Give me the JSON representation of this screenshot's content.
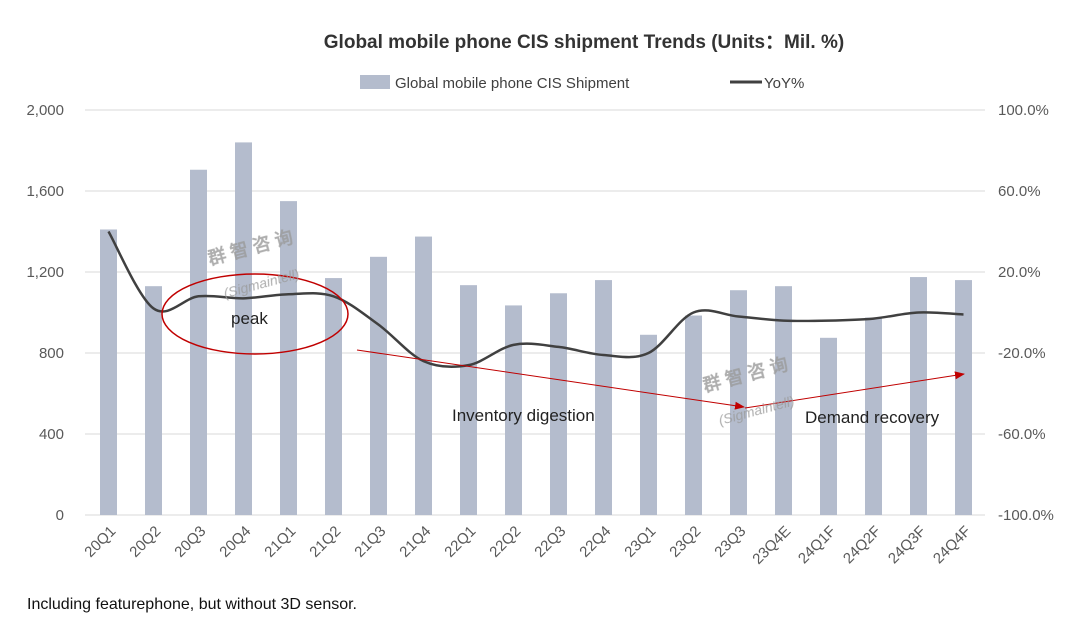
{
  "chart_data": {
    "type": "bar+line",
    "title": "Global mobile phone CIS shipment Trends (Units：Mil. %)",
    "categories": [
      "20Q1",
      "20Q2",
      "20Q3",
      "20Q4",
      "21Q1",
      "21Q2",
      "21Q3",
      "21Q4",
      "22Q1",
      "22Q2",
      "22Q3",
      "22Q4",
      "23Q1",
      "23Q2",
      "23Q3",
      "23Q4E",
      "24Q1F",
      "24Q2F",
      "24Q3F",
      "24Q4F"
    ],
    "series": [
      {
        "name": "Global mobile phone CIS Shipment",
        "kind": "bar",
        "axis": "left",
        "color": "#b4bccd",
        "values": [
          1410,
          1130,
          1705,
          1840,
          1550,
          1170,
          1275,
          1375,
          1135,
          1035,
          1095,
          1160,
          890,
          985,
          1110,
          1130,
          875,
          975,
          1175,
          1160
        ]
      },
      {
        "name": "YoY%",
        "kind": "line",
        "axis": "right",
        "color": "#404040",
        "values": [
          40,
          2,
          8,
          7,
          9,
          8,
          -6,
          -24,
          -26,
          -16,
          -17,
          -21,
          -20,
          0,
          -2,
          -4,
          -4,
          -3,
          0,
          -1
        ]
      }
    ],
    "left_axis": {
      "ticks": [
        "0",
        "400",
        "800",
        "1,200",
        "1,600",
        "2,000"
      ],
      "ylim": [
        0,
        2000
      ]
    },
    "right_axis": {
      "ticks": [
        "-100.0%",
        "-60.0%",
        "-20.0%",
        "20.0%",
        "60.0%",
        "100.0%"
      ],
      "ylim": [
        -100,
        100
      ]
    },
    "legend": {
      "position": "top"
    },
    "gridlines": true,
    "annotations": {
      "peak": "peak",
      "inventory": "Inventory digestion",
      "recovery": "Demand recovery"
    },
    "watermark": {
      "cn": "群 智 咨 询",
      "en": "(Sigmaintell)"
    },
    "footnote": "Including featurephone, but without 3D sensor."
  }
}
